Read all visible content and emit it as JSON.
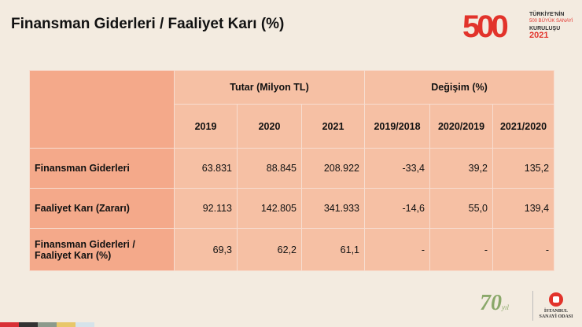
{
  "title": "Finansman Giderleri / Faaliyet Karı (%)",
  "logo_500": {
    "number": "500",
    "line1": "TÜRKİYE'NİN",
    "line2": "500 BÜYÜK SANAYİ",
    "line3": "KURULUŞU",
    "year": "2021"
  },
  "table": {
    "group_headers": [
      "Tutar (Milyon TL)",
      "Değişim (%)"
    ],
    "columns": [
      "2019",
      "2020",
      "2021",
      "2019/2018",
      "2020/2019",
      "2021/2020"
    ],
    "rows": [
      {
        "label": "Finansman Giderleri",
        "values": [
          "63.831",
          "88.845",
          "208.922",
          "-33,4",
          "39,2",
          "135,2"
        ]
      },
      {
        "label": "Faaliyet Karı (Zararı)",
        "values": [
          "92.113",
          "142.805",
          "341.933",
          "-14,6",
          "55,0",
          "139,4"
        ]
      },
      {
        "label": "Finansman Giderleri / Faaliyet Karı (%)",
        "values": [
          "69,3",
          "62,2",
          "61,1",
          "-",
          "-",
          "-"
        ]
      }
    ]
  },
  "logo_70": {
    "number": "70",
    "suffix": "yıl"
  },
  "iso_logo": {
    "name": "İSTANBUL SANAYİ ODASI"
  },
  "colors": {
    "background": "#f3ebe0",
    "label_cell": "#f4a98a",
    "data_cell": "#f6c0a4",
    "brand_red": "#e2332b",
    "strip": [
      "#d93036",
      "#333333",
      "#8c9a8c",
      "#e8c76a",
      "#d6e3ea"
    ]
  }
}
